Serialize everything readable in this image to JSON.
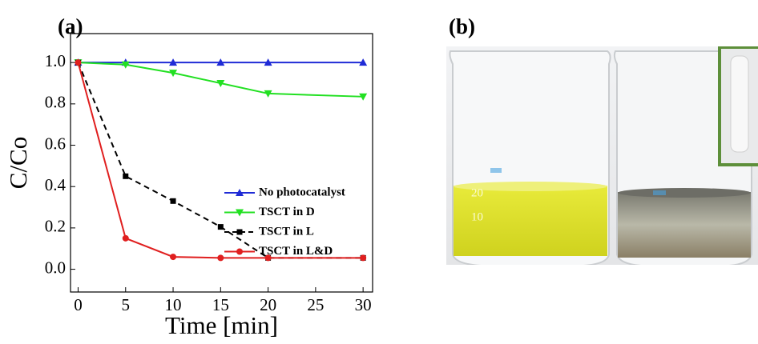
{
  "chart_data": {
    "type": "line",
    "xlabel": "Time [min]",
    "ylabel": "C/Co",
    "x": [
      0,
      5,
      10,
      15,
      20,
      30
    ],
    "series": [
      {
        "name": "No photocatalyst",
        "color": "#1f2bd6",
        "marker": "triangle-up",
        "dash": false,
        "values": [
          1.0,
          1.0,
          1.0,
          1.0,
          1.0,
          1.0
        ]
      },
      {
        "name": "TSCT in D",
        "color": "#22e022",
        "marker": "triangle-down",
        "dash": false,
        "values": [
          1.0,
          0.99,
          0.95,
          0.9,
          0.85,
          0.835
        ]
      },
      {
        "name": "TSCT in L",
        "color": "#000000",
        "marker": "square",
        "dash": true,
        "values": [
          1.0,
          0.45,
          0.33,
          0.205,
          0.055,
          0.055
        ]
      },
      {
        "name": "TSCT in L&D",
        "color": "#e01f1f",
        "marker": "circle",
        "dash": false,
        "values": [
          1.0,
          0.15,
          0.06,
          0.055,
          0.055,
          0.055
        ]
      }
    ],
    "xlim": [
      -0.8,
      31
    ],
    "ylim": [
      -0.11,
      1.14
    ],
    "xticks": [
      0,
      5,
      10,
      15,
      20,
      25,
      30
    ],
    "yticks": [
      {
        "value": 0,
        "label": "0.0"
      },
      0.2,
      0.4,
      0.6,
      0.8,
      {
        "value": 1,
        "label": "1.0"
      }
    ],
    "grid": false
  },
  "panels": {
    "a": "(a)",
    "b": "(b)"
  },
  "photo": {
    "beaker_marks": [
      "20",
      "10"
    ]
  }
}
